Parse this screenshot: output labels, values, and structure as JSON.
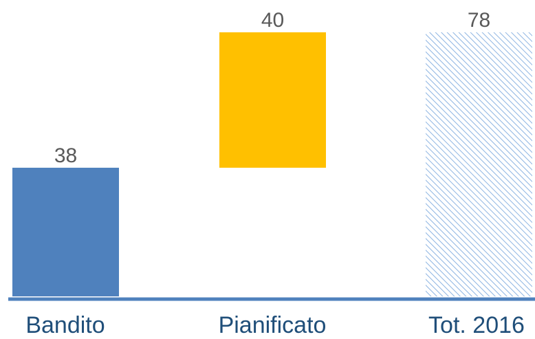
{
  "chart_data": {
    "type": "bar",
    "subtype": "waterfall",
    "title": "",
    "xlabel": "",
    "ylabel": "",
    "categories": [
      "Bandito",
      "Pianificato",
      "Tot. 2016"
    ],
    "values": [
      38,
      40,
      78
    ],
    "bar_bases": [
      0,
      38,
      0
    ],
    "value_labels": [
      "38",
      "40",
      "78"
    ],
    "ylim": [
      0,
      78
    ],
    "grid": false,
    "legend": "none",
    "colors": {
      "bandito": "#4F81BD",
      "pianificato": "#FFC000",
      "total_hatch": "#8DB4E2",
      "axis": "#4F81BD",
      "category_text": "#1F4E79",
      "value_text": "#595959"
    }
  }
}
